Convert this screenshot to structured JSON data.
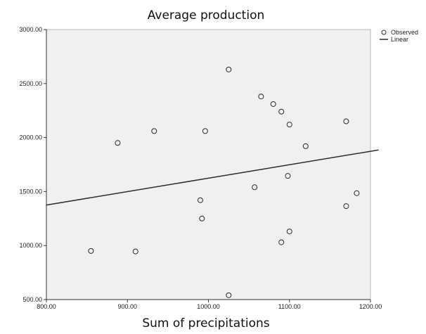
{
  "chart_data": {
    "type": "scatter",
    "title": "Average production",
    "xlabel": "Sum of precipitations",
    "ylabel": "",
    "xlim": [
      800,
      1200
    ],
    "ylim": [
      500,
      3000
    ],
    "x_ticks": [
      "800.00",
      "900.00",
      "1000.00",
      "1100.00",
      "1200.00"
    ],
    "y_ticks": [
      "500.00",
      "1000.00",
      "1500.00",
      "2000.00",
      "2500.00",
      "3000.00"
    ],
    "grid": false,
    "legend_position": "top-right",
    "legend": [
      {
        "label": "Observed",
        "marker": "circle"
      },
      {
        "label": "Linear",
        "marker": "line"
      }
    ],
    "points": [
      {
        "x": 855,
        "y": 950
      },
      {
        "x": 888,
        "y": 1950
      },
      {
        "x": 910,
        "y": 945
      },
      {
        "x": 933,
        "y": 2060
      },
      {
        "x": 990,
        "y": 1420
      },
      {
        "x": 992,
        "y": 1250
      },
      {
        "x": 996,
        "y": 2060
      },
      {
        "x": 1025,
        "y": 2630
      },
      {
        "x": 1025,
        "y": 540
      },
      {
        "x": 1057,
        "y": 1540
      },
      {
        "x": 1065,
        "y": 2380
      },
      {
        "x": 1080,
        "y": 2310
      },
      {
        "x": 1090,
        "y": 2240
      },
      {
        "x": 1090,
        "y": 1030
      },
      {
        "x": 1098,
        "y": 1645
      },
      {
        "x": 1100,
        "y": 2120
      },
      {
        "x": 1100,
        "y": 1130
      },
      {
        "x": 1120,
        "y": 1920
      },
      {
        "x": 1170,
        "y": 2150
      },
      {
        "x": 1170,
        "y": 1365
      },
      {
        "x": 1183,
        "y": 1485
      }
    ],
    "fit_line": {
      "x": [
        800,
        1210
      ],
      "y": [
        1375,
        1885
      ]
    },
    "colors": {
      "plot_background": "#f0f0f0",
      "marker_stroke": "#2b2b2b",
      "line": "#2b2b2b"
    }
  }
}
